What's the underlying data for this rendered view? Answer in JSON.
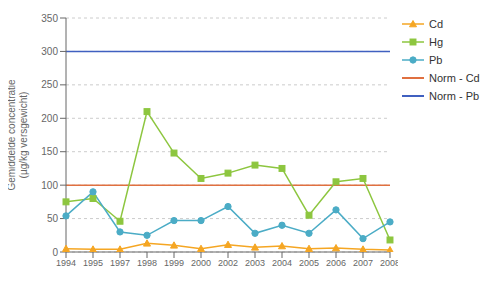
{
  "chart_data": {
    "type": "line",
    "categories": [
      "1994",
      "1995",
      "1997",
      "1998",
      "1999",
      "2000",
      "2002",
      "2003",
      "2004",
      "2005",
      "2006",
      "2007",
      "2008"
    ],
    "series": [
      {
        "name": "Cd",
        "color": "#f5a623",
        "marker": "triangle",
        "values": [
          5,
          4,
          4,
          13,
          10,
          5,
          11,
          7,
          9,
          5,
          6,
          4,
          3
        ]
      },
      {
        "name": "Hg",
        "color": "#8dc63f",
        "marker": "square",
        "values": [
          75,
          80,
          46,
          210,
          148,
          110,
          118,
          130,
          125,
          55,
          105,
          110,
          18
        ]
      },
      {
        "name": "Pb",
        "color": "#4bacc6",
        "marker": "circle",
        "values": [
          54,
          90,
          30,
          25,
          47,
          47,
          68,
          28,
          40,
          28,
          63,
          20,
          45
        ]
      }
    ],
    "reference_lines": [
      {
        "name": "Norm - Cd",
        "value": 100,
        "color": "#e07040"
      },
      {
        "name": "Norm - Pb",
        "value": 300,
        "color": "#4060c0"
      }
    ],
    "ylabel": "Gemiddelde concentratie\n(µg/kg versgewicht)",
    "ylim": [
      0,
      350
    ],
    "yticks": [
      0,
      50,
      100,
      150,
      200,
      250,
      300,
      350
    ],
    "grid": true,
    "legend": "right"
  }
}
